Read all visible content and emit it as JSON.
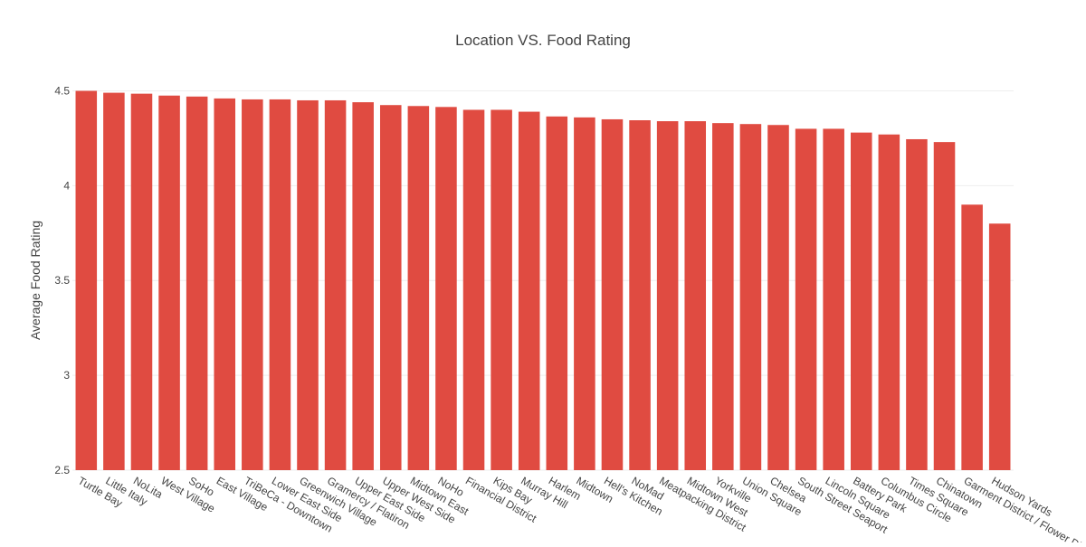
{
  "chart_data": {
    "type": "bar",
    "title": "Location VS. Food Rating",
    "xlabel": "",
    "ylabel": "Average Food Rating",
    "ylim": [
      2.5,
      4.55
    ],
    "yticks": [
      "2.5",
      "3",
      "3.5",
      "4",
      "4.5"
    ],
    "grid": true,
    "bar_color": "#e04b41",
    "categories": [
      "Turtle Bay",
      "Little Italy",
      "NoLita",
      "West Village",
      "SoHo",
      "East Village",
      "TriBeCa - Downtown",
      "Lower East Side",
      "Greenwich Village",
      "Gramercy / Flatiron",
      "Upper East Side",
      "Upper West Side",
      "Midtown East",
      "NoHo",
      "Financial District",
      "Kips Bay",
      "Murray Hill",
      "Harlem",
      "Midtown",
      "Hell's Kitchen",
      "NoMad",
      "Meatpacking District",
      "Midtown West",
      "Yorkville",
      "Union Square",
      "Chelsea",
      "South Street Seaport",
      "Lincoln Square",
      "Battery Park",
      "Columbus Circle",
      "Times Square",
      "Chinatown",
      "Garment District / Flower District",
      "Hudson Yards"
    ],
    "values": [
      4.5,
      4.49,
      4.485,
      4.475,
      4.47,
      4.46,
      4.455,
      4.455,
      4.45,
      4.45,
      4.44,
      4.425,
      4.42,
      4.415,
      4.4,
      4.4,
      4.39,
      4.365,
      4.36,
      4.35,
      4.345,
      4.34,
      4.34,
      4.33,
      4.325,
      4.32,
      4.3,
      4.3,
      4.28,
      4.27,
      4.245,
      4.23,
      3.9,
      3.8
    ]
  }
}
